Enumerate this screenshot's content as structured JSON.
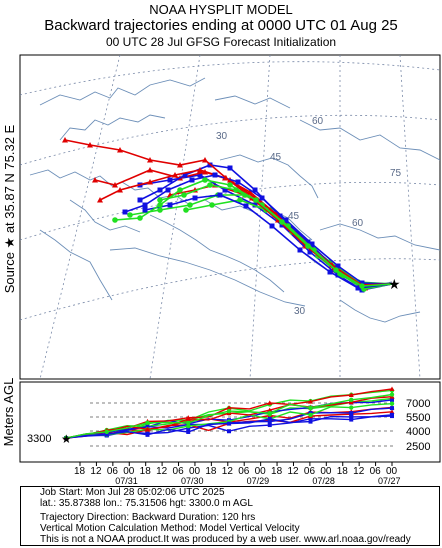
{
  "header": {
    "line1": "NOAA HYSPLIT MODEL",
    "line2": "Backward trajectories ending at 0000 UTC 01 Aug 25",
    "line3": "00 UTC 28 Jul    GFSG  Forecast Initialization"
  },
  "side_label": {
    "source_text": "Source ★ at   35.87 N   75.32 E",
    "height_text": "Meters AGL"
  },
  "map": {
    "lat_labels": [
      "60",
      "45",
      "30",
      "75",
      "60",
      "45",
      "30"
    ],
    "source_marker": "star-icon",
    "colors": {
      "red": "#e00000",
      "blue": "#1010e0",
      "green": "#20e020",
      "coast": "#6d8fb8",
      "grid": "#7a8aa8"
    }
  },
  "height_panel": {
    "start_height": "3300",
    "y_ticks": [
      "7000",
      "5500",
      "4000",
      "2500"
    ],
    "x_ticks": [
      "18",
      "12",
      "06",
      "00",
      "18",
      "12",
      "06",
      "00",
      "18",
      "12",
      "06",
      "00",
      "18",
      "12",
      "06",
      "00",
      "18",
      "12",
      "06",
      "00"
    ],
    "date_labels": [
      "07/31",
      "07/30",
      "07/29",
      "07/28",
      "07/27"
    ]
  },
  "job_info": {
    "line1": "Job Start: Mon Jul 28 05:02:06 UTC 2025",
    "line2": "lat.: 35.87388   lon.: 75.31506    hgt: 3300.0 m AGL",
    "line3": "Trajectory Direction: Backward       Duration: 120 hrs",
    "line4": "Vertical Motion Calculation Method: Model Vertical Velocity",
    "line5": "This is not a NOAA product.It was produced by a web user. www.arl.noaa.gov/ready"
  }
}
